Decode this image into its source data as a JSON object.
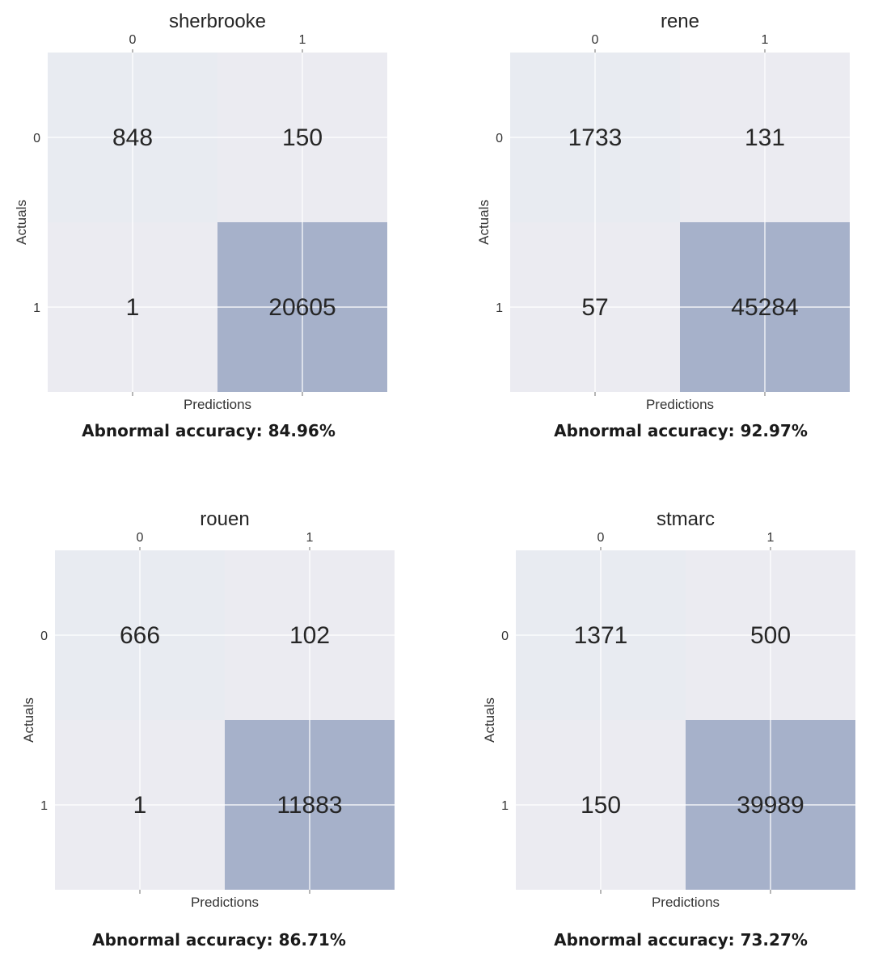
{
  "colors": {
    "cell_dark": "#a6b1ca",
    "cell_light_a": "#e8ebf1",
    "cell_light_b": "#ebebf1",
    "grid": "#ffffff",
    "tick_mark": "#6e6e6e"
  },
  "chart_data": [
    {
      "type": "heatmap",
      "title": "sherbrooke",
      "xlabel": "Predictions",
      "ylabel": "Actuals",
      "x_tick_labels": [
        "0",
        "1"
      ],
      "y_tick_labels": [
        "0",
        "1"
      ],
      "matrix": [
        [
          848,
          150
        ],
        [
          1,
          20605
        ]
      ],
      "caption": "Abnormal accuracy: 84.96%"
    },
    {
      "type": "heatmap",
      "title": "rene",
      "xlabel": "Predictions",
      "ylabel": "Actuals",
      "x_tick_labels": [
        "0",
        "1"
      ],
      "y_tick_labels": [
        "0",
        "1"
      ],
      "matrix": [
        [
          1733,
          131
        ],
        [
          57,
          45284
        ]
      ],
      "caption": "Abnormal accuracy: 92.97%"
    },
    {
      "type": "heatmap",
      "title": "rouen",
      "xlabel": "Predictions",
      "ylabel": "Actuals",
      "x_tick_labels": [
        "0",
        "1"
      ],
      "y_tick_labels": [
        "0",
        "1"
      ],
      "matrix": [
        [
          666,
          102
        ],
        [
          1,
          11883
        ]
      ],
      "caption": "Abnormal accuracy: 86.71%"
    },
    {
      "type": "heatmap",
      "title": "stmarc",
      "xlabel": "Predictions",
      "ylabel": "Actuals",
      "x_tick_labels": [
        "0",
        "1"
      ],
      "y_tick_labels": [
        "0",
        "1"
      ],
      "matrix": [
        [
          1371,
          500
        ],
        [
          150,
          39989
        ]
      ],
      "caption": "Abnormal accuracy: 73.27%"
    }
  ]
}
